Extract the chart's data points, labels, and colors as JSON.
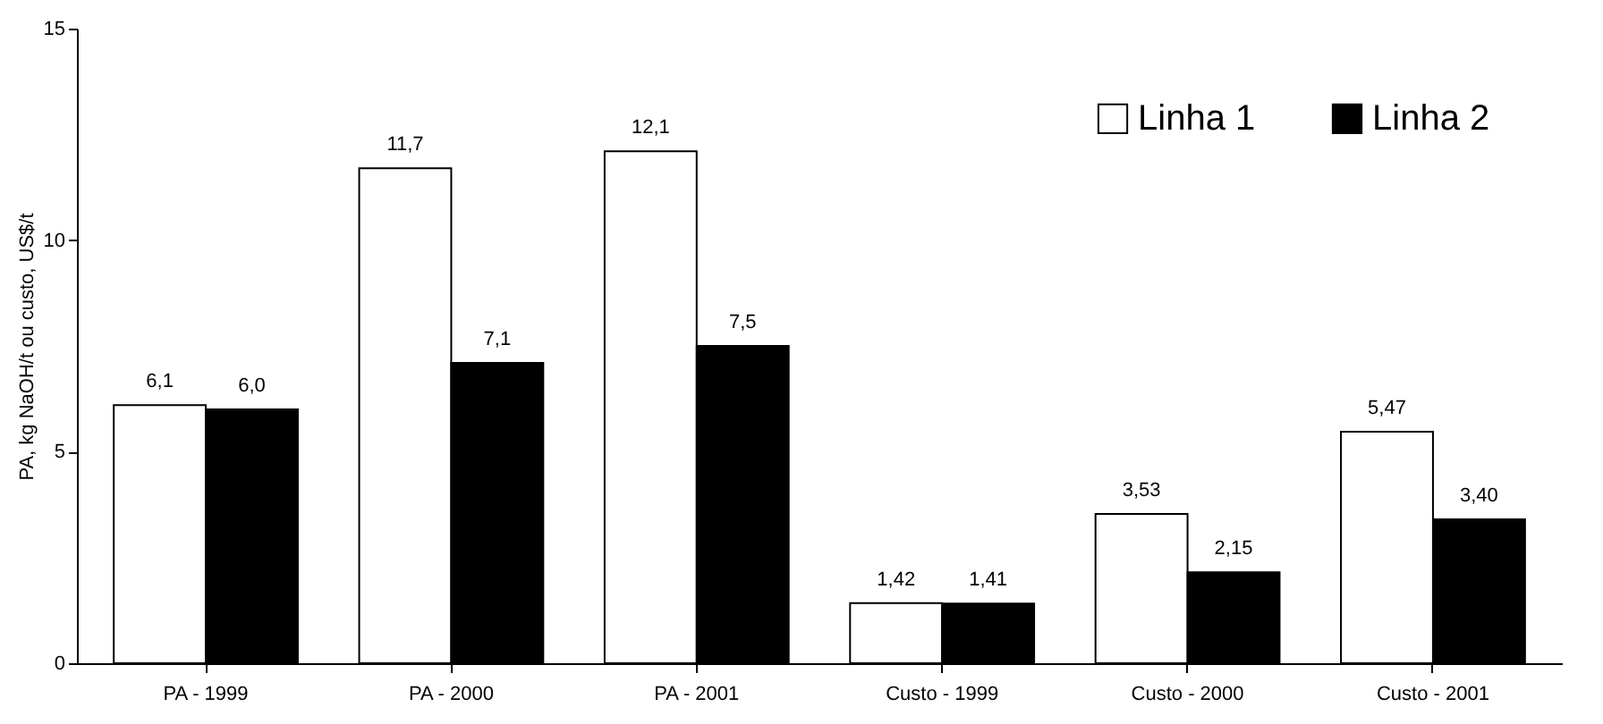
{
  "chart_data": {
    "type": "bar",
    "ylabel": "PA, kg NaOH/t ou custo, US$/t",
    "categories": [
      "PA - 1999",
      "PA - 2000",
      "PA - 2001",
      "Custo - 1999",
      "Custo - 2000",
      "Custo - 2001"
    ],
    "series": [
      {
        "name": "Linha 1",
        "color": "#ffffff",
        "values": [
          6.1,
          11.7,
          12.1,
          1.42,
          3.53,
          5.47
        ],
        "value_labels": [
          "6,1",
          "11,7",
          "12,1",
          "1,42",
          "3,53",
          "5,47"
        ]
      },
      {
        "name": "Linha 2",
        "color": "#000000",
        "values": [
          6.0,
          7.1,
          7.5,
          1.41,
          2.15,
          3.4
        ],
        "value_labels": [
          "6,0",
          "7,1",
          "7,5",
          "1,41",
          "2,15",
          "3,40"
        ]
      }
    ],
    "ylim": [
      0,
      15
    ],
    "yticks": [
      0,
      5,
      10,
      15
    ],
    "grid": false,
    "legend": "top right"
  }
}
